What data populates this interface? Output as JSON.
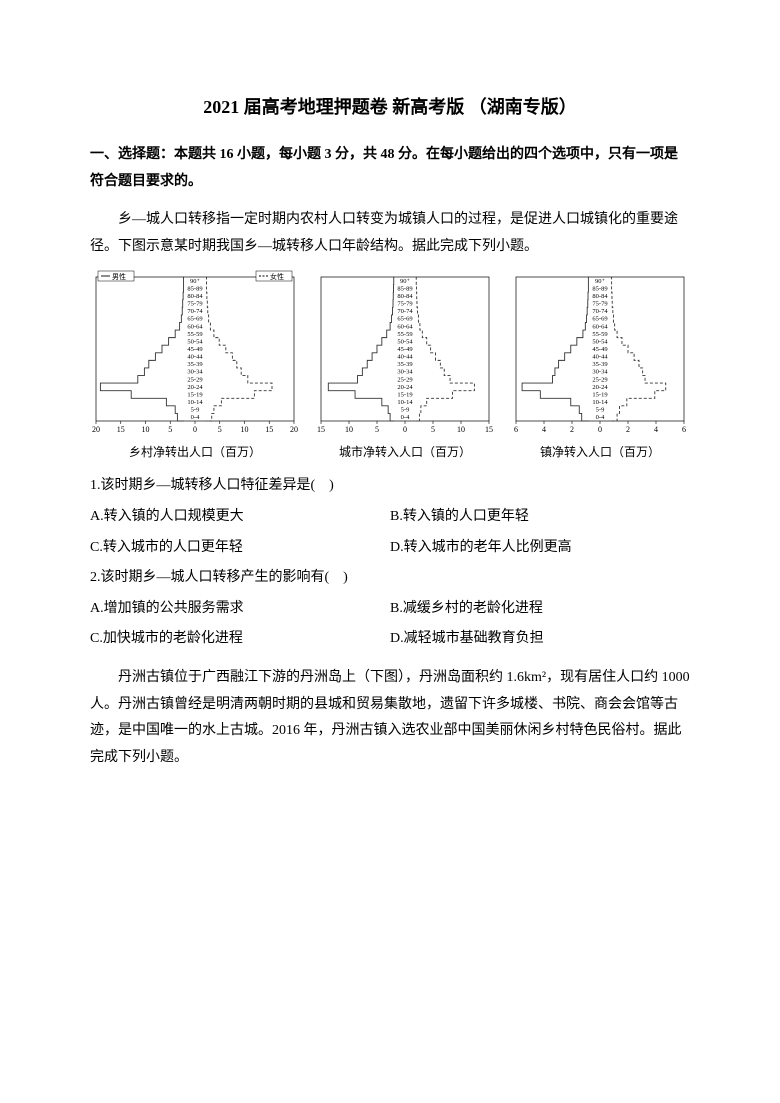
{
  "title": "2021 届高考地理押题卷 新高考版 （湖南专版）",
  "section_head": "一、选择题：本题共 16 小题，每小题 3 分，共 48 分。在每小题给出的四个选项中，只有一项是符合题目要求的。",
  "intro": "乡—城人口转移指一定时期内农村人口转变为城镇人口的过程，是促进人口城镇化的重要途径。下图示意某时期我国乡—城转移人口年龄结构。据此完成下列小题。",
  "charts": {
    "legend_male": "男性",
    "legend_female": "女性",
    "age_labels": [
      "90⁺",
      "85-89",
      "80-84",
      "75-79",
      "70-74",
      "65-69",
      "60-64",
      "55-59",
      "50-54",
      "45-49",
      "40-44",
      "35-39",
      "30-34",
      "25-29",
      "20-24",
      "15-19",
      "10-14",
      "5-9",
      "0-4"
    ],
    "chart1": {
      "caption": "乡村净转出人口（百万）",
      "x_ticks": [
        "20",
        "15",
        "10",
        "5",
        "0",
        "5",
        "10",
        "15",
        "20"
      ],
      "x_range": 20,
      "male": [
        0.1,
        0.1,
        0.2,
        0.3,
        0.4,
        0.6,
        1.0,
        2.0,
        3.5,
        5.0,
        6.5,
        8.0,
        9.0,
        10.5,
        19.0,
        12.0,
        4.0,
        2.0,
        1.5
      ],
      "female": [
        0.1,
        0.1,
        0.2,
        0.3,
        0.4,
        0.6,
        1.0,
        1.8,
        3.0,
        4.5,
        6.0,
        7.0,
        8.0,
        9.5,
        15.0,
        11.0,
        3.5,
        1.8,
        1.3
      ]
    },
    "chart2": {
      "caption": "城市净转入人口（百万）",
      "x_ticks": [
        "15",
        "10",
        "5",
        "0",
        "5",
        "10",
        "15"
      ],
      "x_range": 15,
      "male": [
        0.05,
        0.1,
        0.15,
        0.2,
        0.3,
        0.5,
        0.8,
        1.5,
        2.5,
        3.5,
        4.5,
        5.5,
        6.5,
        7.5,
        13.5,
        8.0,
        2.5,
        1.2,
        0.8
      ],
      "female": [
        0.05,
        0.1,
        0.15,
        0.2,
        0.3,
        0.5,
        0.8,
        1.3,
        2.2,
        3.0,
        4.0,
        5.0,
        5.8,
        7.0,
        12.0,
        7.5,
        2.2,
        1.0,
        0.7
      ]
    },
    "chart3": {
      "caption": "镇净转入人口（百万）",
      "x_ticks": [
        "6",
        "4",
        "2",
        "0",
        "2",
        "4",
        "6"
      ],
      "x_range": 6,
      "male": [
        0.05,
        0.05,
        0.08,
        0.1,
        0.15,
        0.2,
        0.3,
        0.5,
        1.0,
        1.5,
        2.0,
        2.5,
        2.8,
        3.0,
        5.5,
        4.0,
        1.5,
        0.8,
        0.6
      ],
      "female": [
        0.05,
        0.05,
        0.08,
        0.1,
        0.15,
        0.2,
        0.3,
        0.5,
        0.9,
        1.4,
        1.9,
        2.3,
        2.6,
        2.8,
        4.5,
        3.6,
        1.3,
        0.7,
        0.5
      ]
    },
    "colors": {
      "axis": "#000000",
      "line": "#333333",
      "dash": "#333333",
      "grid": "#888888",
      "bg": "#ffffff"
    },
    "font_size_axis": 8
  },
  "q1": {
    "stem": "1.该时期乡—城转移人口特征差异是(　)",
    "A": "A.转入镇的人口规模更大",
    "B": "B.转入镇的人口更年轻",
    "C": "C.转入城市的人口更年轻",
    "D": "D.转入城市的老年人比例更高"
  },
  "q2": {
    "stem": "2.该时期乡—城人口转移产生的影响有(　)",
    "A": "A.增加镇的公共服务需求",
    "B": "B.减缓乡村的老龄化进程",
    "C": "C.加快城市的老龄化进程",
    "D": "D.减轻城市基础教育负担"
  },
  "passage2": "丹洲古镇位于广西融江下游的丹洲岛上（下图），丹洲岛面积约 1.6km²，现有居住人口约 1000 人。丹洲古镇曾经是明清两朝时期的县城和贸易集散地，遗留下许多城楼、书院、商会会馆等古迹，是中国唯一的水上古城。2016 年，丹洲古镇入选农业部中国美丽休闲乡村特色民俗村。据此完成下列小题。"
}
